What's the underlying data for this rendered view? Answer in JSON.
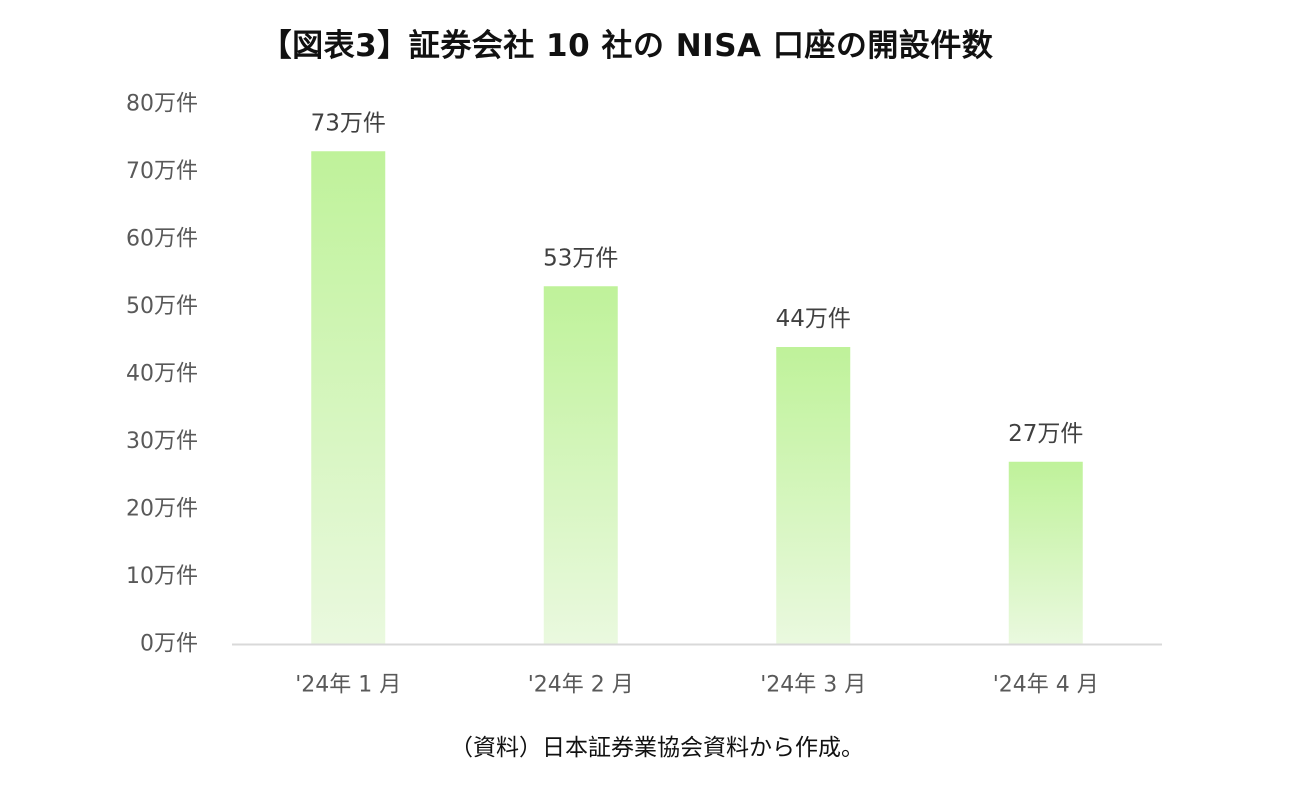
{
  "title": "【図表3】証券会社 10 社の NISA 口座の開設件数",
  "source": "（資料）日本証券業協会資料から作成。",
  "chart_data": {
    "type": "bar",
    "categories": [
      "'24年 1 月",
      "'24年 2 月",
      "'24年 3 月",
      "'24年 4 月"
    ],
    "values": [
      73,
      53,
      44,
      27
    ],
    "data_labels": [
      "73万件",
      "53万件",
      "44万件",
      "27万件"
    ],
    "unit": "万件",
    "ylim": [
      0,
      80
    ],
    "yticks": [
      0,
      10,
      20,
      30,
      40,
      50,
      60,
      70,
      80
    ],
    "ytick_labels": [
      "0万件",
      "10万件",
      "20万件",
      "30万件",
      "40万件",
      "50万件",
      "60万件",
      "70万件",
      "80万件"
    ],
    "xlabel": "",
    "ylabel": "",
    "grid": false,
    "legend": "none",
    "bar_color_top": "#bff29a",
    "bar_color_bottom": "#eaf9df",
    "axis_color": "#d9d9d9"
  }
}
